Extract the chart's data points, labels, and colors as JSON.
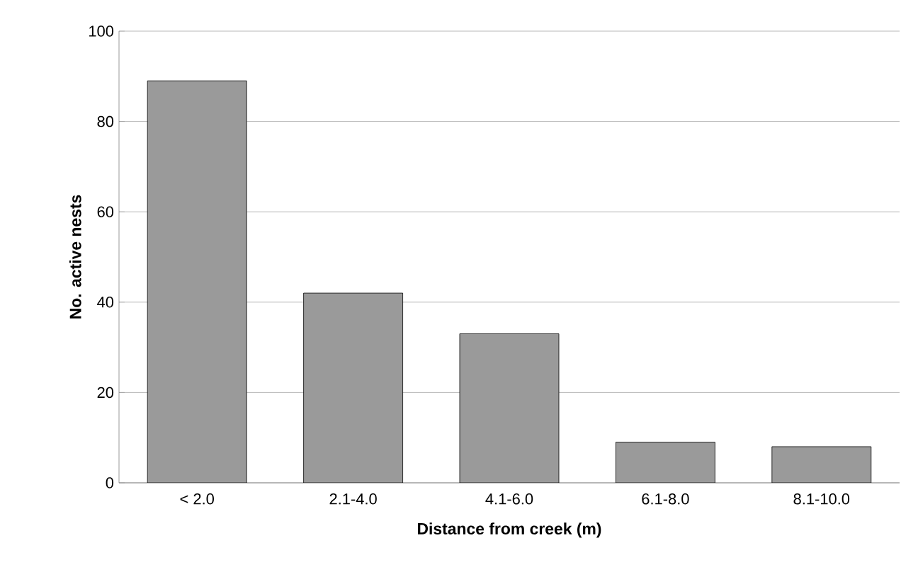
{
  "chart_data": {
    "type": "bar",
    "xlabel": "Distance from creek (m)",
    "ylabel": "No. active nests",
    "categories": [
      "< 2.0",
      "2.1-4.0",
      "4.1-6.0",
      "6.1-8.0",
      "8.1-10.0"
    ],
    "values": [
      89,
      42,
      33,
      9,
      8
    ],
    "color": "#9a9a9a",
    "ylim": [
      0,
      100
    ],
    "yticks": [
      0,
      20,
      40,
      60,
      80,
      100
    ],
    "grid": "y"
  }
}
